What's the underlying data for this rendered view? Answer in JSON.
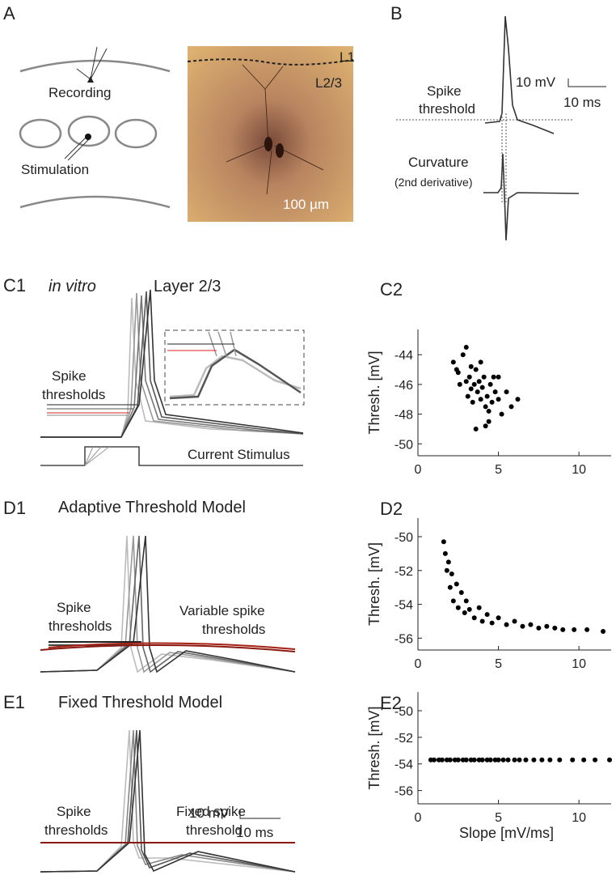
{
  "panels": {
    "a": {
      "label": "A",
      "recording": "Recording",
      "stimulation": "Stimulation",
      "layer1": "L1",
      "layer23": "L2/3",
      "scale": "100 µm"
    },
    "b": {
      "label": "B",
      "scale_mv": "10 mV",
      "scale_ms": "10 ms",
      "spike_threshold": [
        "Spike",
        "threshold"
      ],
      "curvature": "Curvature",
      "derivative": "(2nd derivative)"
    },
    "c1": {
      "label": "C1",
      "condition": "in vitro",
      "layer": "Layer 2/3",
      "spike_thresholds": [
        "Spike",
        "thresholds"
      ],
      "stimulus": "Current Stimulus"
    },
    "c2": {
      "label": "C2"
    },
    "d1": {
      "label": "D1",
      "title": "Adaptive Threshold Model",
      "spike_thresholds": [
        "Spike",
        "thresholds"
      ],
      "variable": [
        "Variable spike",
        "thresholds"
      ]
    },
    "d2": {
      "label": "D2"
    },
    "e1": {
      "label": "E1",
      "title": "Fixed Threshold Model",
      "scale_mv": "10 mV",
      "scale_ms": "10 ms",
      "spike_thresholds": [
        "Spike",
        "thresholds"
      ],
      "fixed": [
        "Fixed spike",
        "threshold"
      ]
    },
    "e2": {
      "label": "E2"
    }
  },
  "chart_data": [
    {
      "type": "scatter",
      "y_label": "Thresh. [mV]",
      "color": "#000000",
      "x": [
        2.2,
        2.5,
        2.8,
        3.0,
        3.2,
        3.3,
        3.5,
        3.6,
        3.7,
        3.8,
        3.9,
        4.0,
        4.1,
        4.2,
        4.3,
        4.4,
        4.5,
        4.6,
        4.8,
        5.0,
        5.2,
        5.5,
        5.8,
        6.2,
        2.6,
        3.1,
        3.4,
        3.9,
        4.2,
        4.7,
        3.0,
        3.6,
        4.4,
        5.0,
        2.4,
        3.3
      ],
      "values": [
        -44.5,
        -45.2,
        -44.0,
        -43.5,
        -45.5,
        -44.8,
        -46.0,
        -45.0,
        -46.5,
        -45.8,
        -47.0,
        -46.2,
        -45.5,
        -47.5,
        -46.8,
        -48.5,
        -46.0,
        -47.2,
        -46.5,
        -47.0,
        -48.0,
        -46.5,
        -47.5,
        -47.0,
        -46.0,
        -46.8,
        -47.2,
        -44.5,
        -48.8,
        -45.5,
        -45.8,
        -49.0,
        -47.8,
        -45.5,
        -45.0,
        -46.3
      ],
      "xlim": [
        0,
        12
      ],
      "xticks": [
        0,
        5,
        10
      ],
      "ylim": [
        -50.8,
        -42.3
      ],
      "yticks": [
        -50,
        -48,
        -46,
        -44
      ]
    },
    {
      "type": "scatter",
      "y_label": "Thresh. [mV]",
      "color": "#000000",
      "x": [
        1.6,
        1.7,
        1.8,
        1.9,
        2.0,
        2.1,
        2.2,
        2.4,
        2.5,
        2.7,
        2.9,
        3.0,
        3.2,
        3.5,
        3.8,
        4.0,
        4.3,
        4.6,
        5.0,
        5.5,
        6.0,
        6.5,
        7.0,
        7.5,
        8.0,
        8.5,
        9.0,
        9.7,
        10.5,
        11.5
      ],
      "values": [
        -50.3,
        -51.0,
        -52.0,
        -51.5,
        -53.0,
        -52.2,
        -53.8,
        -52.8,
        -54.2,
        -53.3,
        -54.5,
        -53.8,
        -54.3,
        -54.8,
        -54.2,
        -55.0,
        -54.6,
        -55.1,
        -54.8,
        -55.2,
        -55.0,
        -55.3,
        -55.2,
        -55.4,
        -55.3,
        -55.4,
        -55.5,
        -55.5,
        -55.5,
        -55.6
      ],
      "xlim": [
        0,
        12
      ],
      "xticks": [
        0,
        5,
        10
      ],
      "ylim": [
        -56.7,
        -48.9
      ],
      "yticks": [
        -56,
        -54,
        -52,
        -50
      ]
    },
    {
      "type": "scatter",
      "y_label": "Thresh. [mV]",
      "x_label": "Slope [mV/ms]",
      "color": "#000000",
      "x": [
        0.8,
        1.0,
        1.3,
        1.5,
        1.8,
        2.0,
        2.3,
        2.5,
        2.8,
        3.0,
        3.3,
        3.5,
        3.8,
        4.0,
        4.3,
        4.5,
        4.8,
        5.0,
        5.3,
        5.6,
        6.0,
        6.3,
        6.7,
        7.2,
        7.7,
        8.2,
        8.8,
        9.6,
        10.3,
        11.0,
        11.9
      ],
      "values": [
        -53.7,
        -53.7,
        -53.7,
        -53.7,
        -53.7,
        -53.7,
        -53.7,
        -53.7,
        -53.7,
        -53.7,
        -53.7,
        -53.7,
        -53.7,
        -53.7,
        -53.7,
        -53.7,
        -53.7,
        -53.7,
        -53.7,
        -53.7,
        -53.7,
        -53.7,
        -53.7,
        -53.7,
        -53.7,
        -53.7,
        -53.7,
        -53.7,
        -53.7,
        -53.7,
        -53.7
      ],
      "xlim": [
        0,
        12
      ],
      "xticks": [
        0,
        5,
        10
      ],
      "ylim": [
        -57,
        -48.6
      ],
      "yticks": [
        -56,
        -54,
        -52,
        -50
      ]
    }
  ]
}
